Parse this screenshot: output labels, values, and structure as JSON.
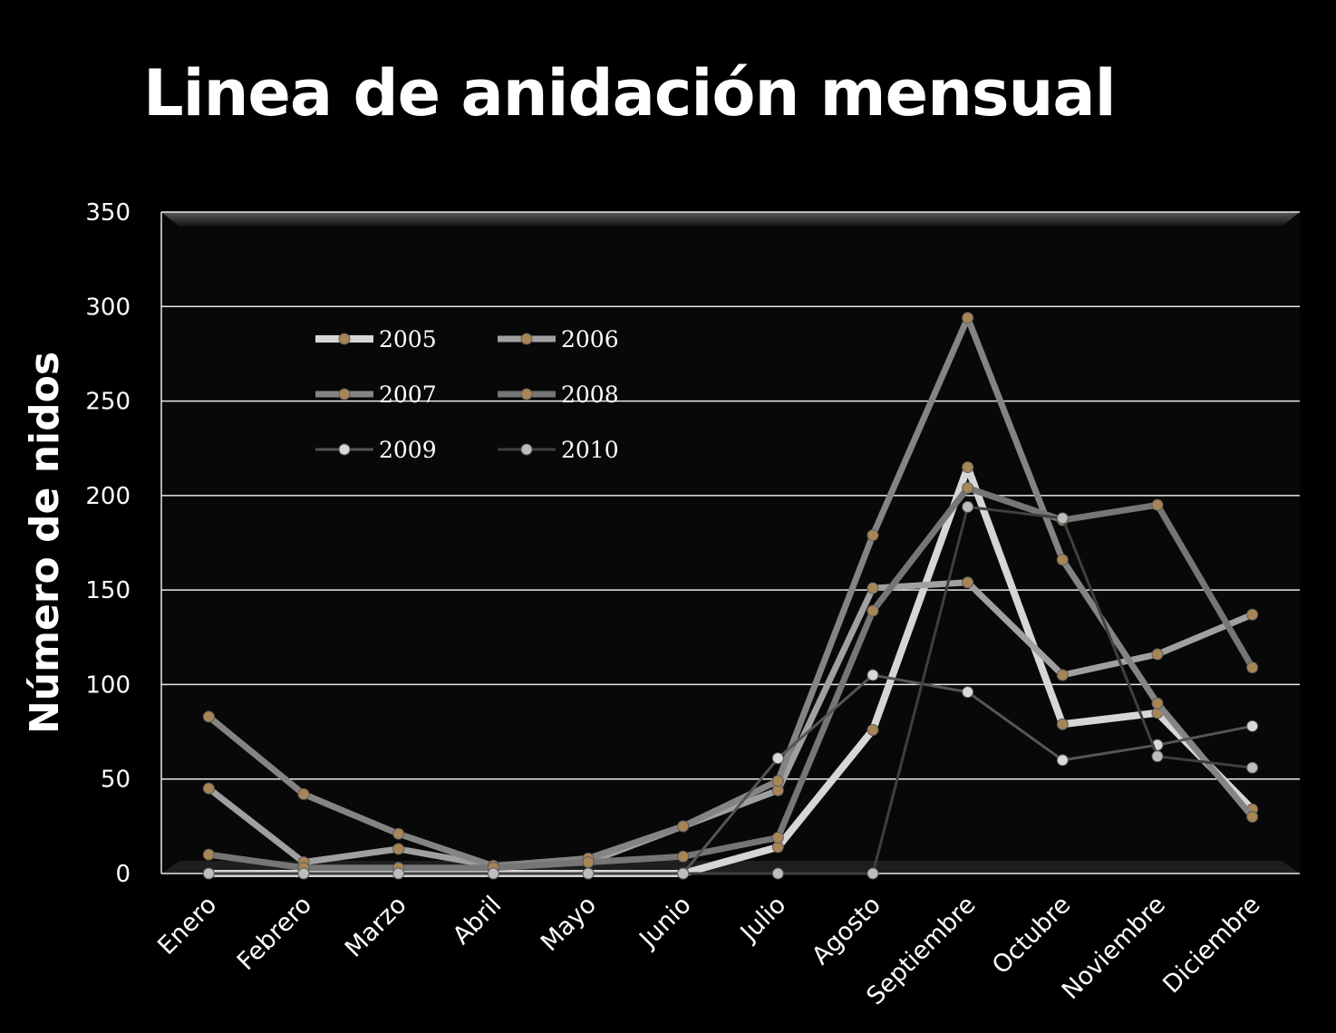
{
  "title": "Linea de anidación  mensual",
  "chart_data": {
    "type": "line",
    "ylabel": "Número de nidos",
    "xlabel": "",
    "ylim": [
      0,
      350
    ],
    "yticks": [
      0,
      50,
      100,
      150,
      200,
      250,
      300,
      350
    ],
    "grid": true,
    "legend_position": "top-left",
    "categories": [
      "Enero",
      "Febrero",
      "Marzo",
      "Abril",
      "Mayo",
      "Junio",
      "Julio",
      "Agosto",
      "Septiembre",
      "Octubre",
      "Noviembre",
      "Diciembre"
    ],
    "series": [
      {
        "name": "2005",
        "color": "#d6d6d6",
        "marker": "#a88556",
        "width": 8,
        "values": [
          0,
          0,
          0,
          0,
          0,
          0,
          14,
          76,
          215,
          79,
          85,
          34
        ]
      },
      {
        "name": "2006",
        "color": "#a0a0a0",
        "marker": "#a88556",
        "width": 7,
        "values": [
          45,
          6,
          13,
          4,
          6,
          25,
          44,
          151,
          154,
          105,
          116,
          137
        ]
      },
      {
        "name": "2007",
        "color": "#848484",
        "marker": "#a88556",
        "width": 7,
        "values": [
          83,
          42,
          21,
          4,
          8,
          25,
          49,
          179,
          294,
          166,
          90,
          30
        ]
      },
      {
        "name": "2008",
        "color": "#767676",
        "marker": "#a88556",
        "width": 7,
        "values": [
          10,
          3,
          3,
          3,
          6,
          9,
          19,
          139,
          204,
          187,
          195,
          109
        ]
      },
      {
        "name": "2009",
        "color": "#555555",
        "marker": "#d9d9d9",
        "width": 3,
        "values": [
          0,
          0,
          0,
          0,
          0,
          0,
          61,
          105,
          96,
          60,
          68,
          78
        ]
      },
      {
        "name": "2010",
        "color": "#3f3f3f",
        "marker": "#bdbdbd",
        "width": 3,
        "values": [
          0,
          0,
          0,
          0,
          0,
          0,
          0,
          0,
          194,
          188,
          62,
          56
        ]
      }
    ]
  }
}
